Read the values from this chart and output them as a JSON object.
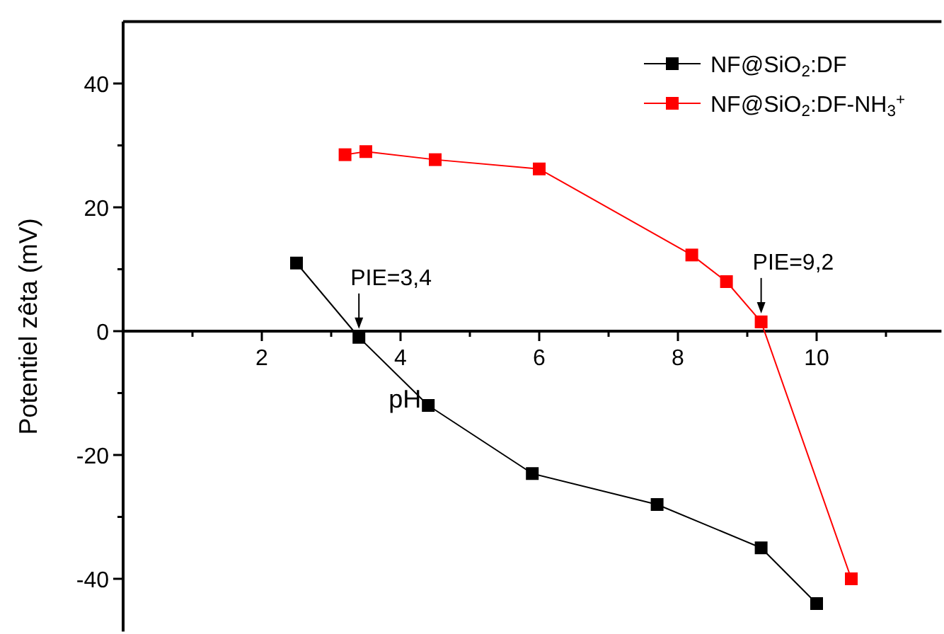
{
  "chart_data": {
    "type": "line",
    "xlabel": "pH",
    "ylabel": "Potentiel zêta (mV)",
    "xlim": [
      0,
      11.8
    ],
    "ylim": [
      -48.5,
      50
    ],
    "xticks": [
      {
        "value": 0,
        "label": null
      },
      {
        "value": 1,
        "label": null
      },
      2,
      {
        "value": 3,
        "label": null
      },
      4,
      {
        "value": 5,
        "label": null
      },
      6,
      {
        "value": 7,
        "label": null
      },
      8,
      {
        "value": 9,
        "label": null
      },
      10,
      {
        "value": 11,
        "label": null
      }
    ],
    "yticks": [
      {
        "value": -40,
        "label": "-40"
      },
      {
        "value": -30,
        "label": null
      },
      {
        "value": -20,
        "label": "-20"
      },
      {
        "value": -10,
        "label": null
      },
      0,
      {
        "value": 10,
        "label": null
      },
      20,
      {
        "value": 30,
        "label": null
      },
      40
    ],
    "series": [
      {
        "name": "NF@SiO$_{2}$:DF",
        "color": "#000000",
        "x": [
          2.5,
          3.4,
          4.4,
          5.9,
          7.7,
          9.2,
          10
        ],
        "values": [
          11,
          -1,
          -12,
          -23,
          -28,
          -35,
          -44
        ]
      },
      {
        "name": "NF@SiO$_{2}$:DF-NH$_{3}$$^{+}$",
        "color": "#ff0000",
        "x": [
          3.2,
          3.5,
          4.5,
          6,
          8.2,
          8.7,
          9.2,
          10.5
        ],
        "values": [
          28.5,
          29,
          27.7,
          26.2,
          12.3,
          8,
          1.5,
          -40
        ]
      }
    ],
    "annotations": [
      {
        "text": "PIE=3,4",
        "x": 3.4,
        "y": -1
      },
      {
        "text": "PIE=9,2",
        "x": 9.2,
        "y": 1.5
      }
    ],
    "marker": "square",
    "line_style": "solid",
    "legend": "top right",
    "grid": false
  }
}
